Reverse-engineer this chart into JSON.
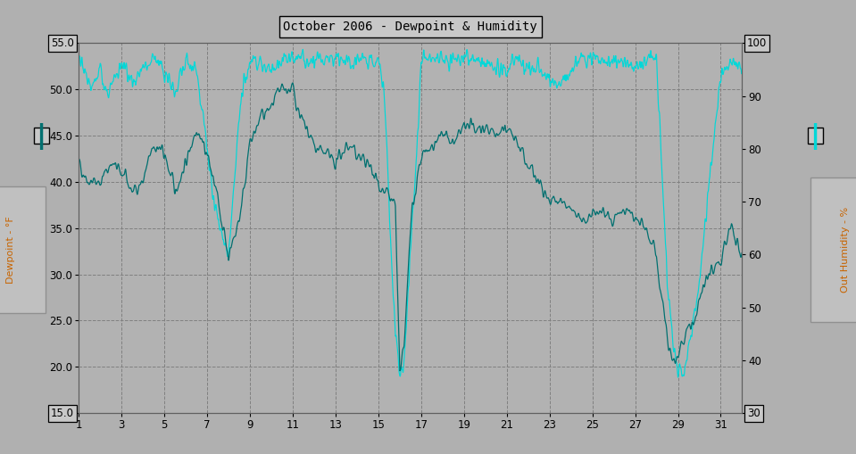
{
  "title": "October 2006 - Dewpoint & Humidity",
  "bg_color": "#b0b0b0",
  "plot_bg_color": "#b2b2b2",
  "grid_color": "#808080",
  "dewpoint_color": "#007070",
  "humidity_color": "#00d8d8",
  "ylabel_left": "Dewpoint - °F",
  "ylabel_right": "Out Humidity - %",
  "ylim_left": [
    15.0,
    55.0
  ],
  "ylim_right": [
    30,
    100
  ],
  "yticks_left": [
    15.0,
    20.0,
    25.0,
    30.0,
    35.0,
    40.0,
    45.0,
    50.0,
    55.0
  ],
  "yticks_right": [
    30,
    40,
    50,
    60,
    70,
    80,
    90,
    100
  ],
  "xticks": [
    1,
    3,
    5,
    7,
    9,
    11,
    13,
    15,
    17,
    19,
    21,
    23,
    25,
    27,
    29,
    31
  ],
  "xlim": [
    1,
    32
  ],
  "n_points": 2976
}
